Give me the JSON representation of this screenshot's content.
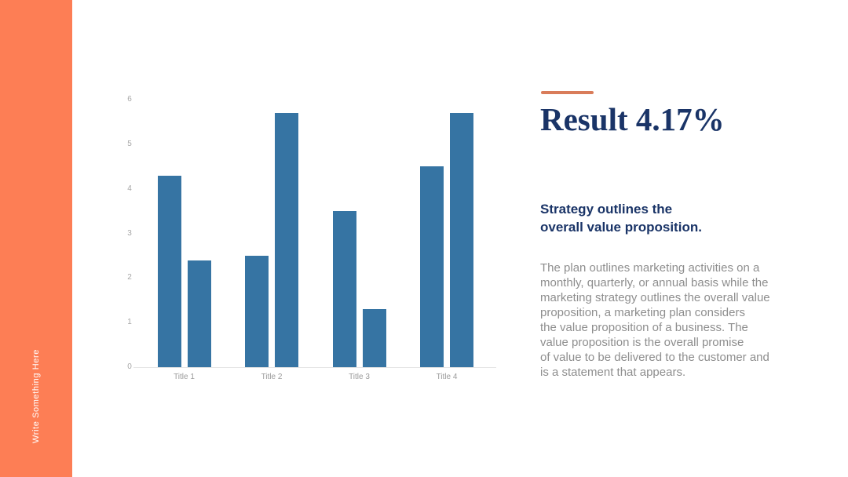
{
  "sidebar": {
    "vertical_text": "Write Something Here",
    "background_color": "#FD7E55"
  },
  "content": {
    "accent_color": "#D97C5A",
    "title": "Result 4.17%",
    "title_color": "#1A3467",
    "subtitle": "Strategy outlines the\noverall value proposition.",
    "body": "The plan outlines marketing activities on a\nmonthly, quarterly, or annual basis while the\nmarketing strategy outlines the overall value\nproposition, a marketing plan considers\nthe value proposition of a business. The\nvalue proposition is the overall promise\nof value to be delivered to the customer and\nis a statement that appears.",
    "body_color": "#8E8E8E"
  },
  "chart_data": {
    "type": "bar",
    "categories": [
      "Title 1",
      "Title 2",
      "Title 3",
      "Title 4"
    ],
    "series": [
      {
        "values": [
          4.3,
          2.5,
          3.5,
          4.5
        ]
      },
      {
        "values": [
          2.4,
          5.7,
          1.3,
          5.7
        ]
      }
    ],
    "yticks": [
      0,
      1,
      2,
      3,
      4,
      5,
      6
    ],
    "ylim": [
      0,
      6
    ],
    "bar_color": "#3674A3",
    "axis_color": "#E4E4E4",
    "tick_label_color": "#A6A6A6",
    "grid": false,
    "legend": false
  }
}
